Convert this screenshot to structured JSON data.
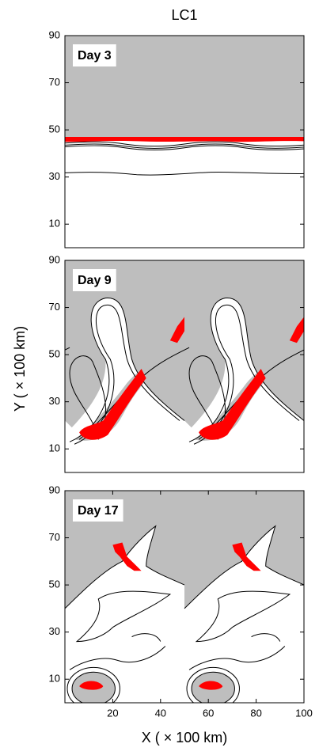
{
  "figure": {
    "title": "LC1",
    "xlabel": "X ( × 100 km)",
    "ylabel": "Y ( × 100 km)"
  },
  "chart_data": [
    {
      "type": "contour",
      "label": "Day 3",
      "xlim": [
        0,
        100
      ],
      "ylim": [
        0,
        90
      ],
      "yticks": [
        10,
        30,
        50,
        70,
        90
      ]
    },
    {
      "type": "contour",
      "label": "Day 9",
      "xlim": [
        0,
        100
      ],
      "ylim": [
        0,
        90
      ],
      "yticks": [
        10,
        30,
        50,
        70,
        90
      ]
    },
    {
      "type": "contour",
      "label": "Day 17",
      "xlim": [
        0,
        100
      ],
      "ylim": [
        0,
        90
      ],
      "yticks": [
        10,
        30,
        50,
        70,
        90
      ],
      "xticks": [
        20,
        40,
        60,
        80,
        100
      ]
    }
  ]
}
